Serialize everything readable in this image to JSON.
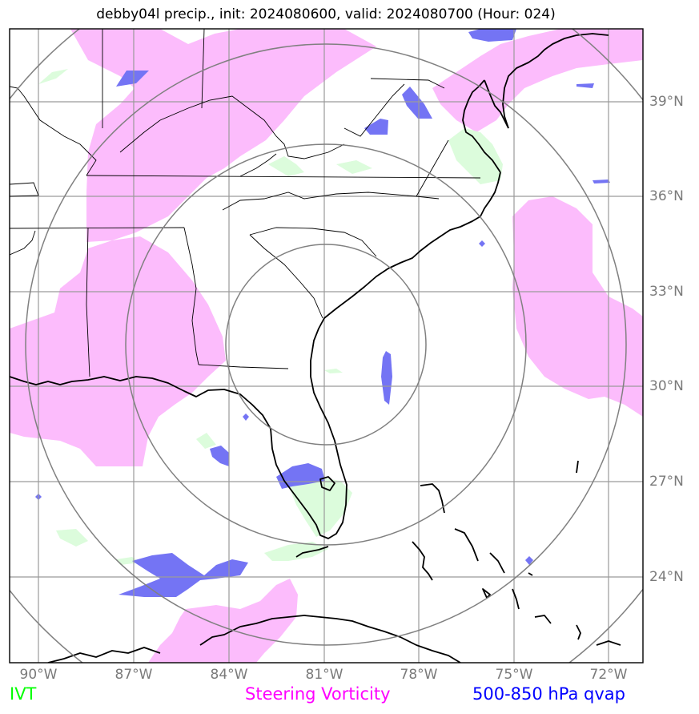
{
  "title": "debby04l precip., init: 2024080600, valid: 2024080700 (Hour: 024)",
  "map": {
    "lon_ticks": [
      "90°W",
      "87°W",
      "84°W",
      "81°W",
      "78°W",
      "75°W",
      "72°W"
    ],
    "lat_ticks": [
      "39°N",
      "36°N",
      "33°N",
      "30°N",
      "27°N",
      "24°N"
    ],
    "range_rings_count": 4,
    "colors": {
      "frame": "#000000",
      "gridlines": "#9a9a9a",
      "range_rings": "#808080",
      "coastline": "#000000",
      "ivt_fill": "#dcfcdc",
      "vorticity_fill": "#fcbcfc",
      "qvap_fill": "#7474f4"
    }
  },
  "legend": {
    "ivt": {
      "label": "IVT",
      "color": "#00ff00"
    },
    "vorticity": {
      "label": "Steering Vorticity",
      "color": "#ff00ff"
    },
    "qvap": {
      "label": "500-850 hPa qvap",
      "color": "#0000ff"
    }
  }
}
